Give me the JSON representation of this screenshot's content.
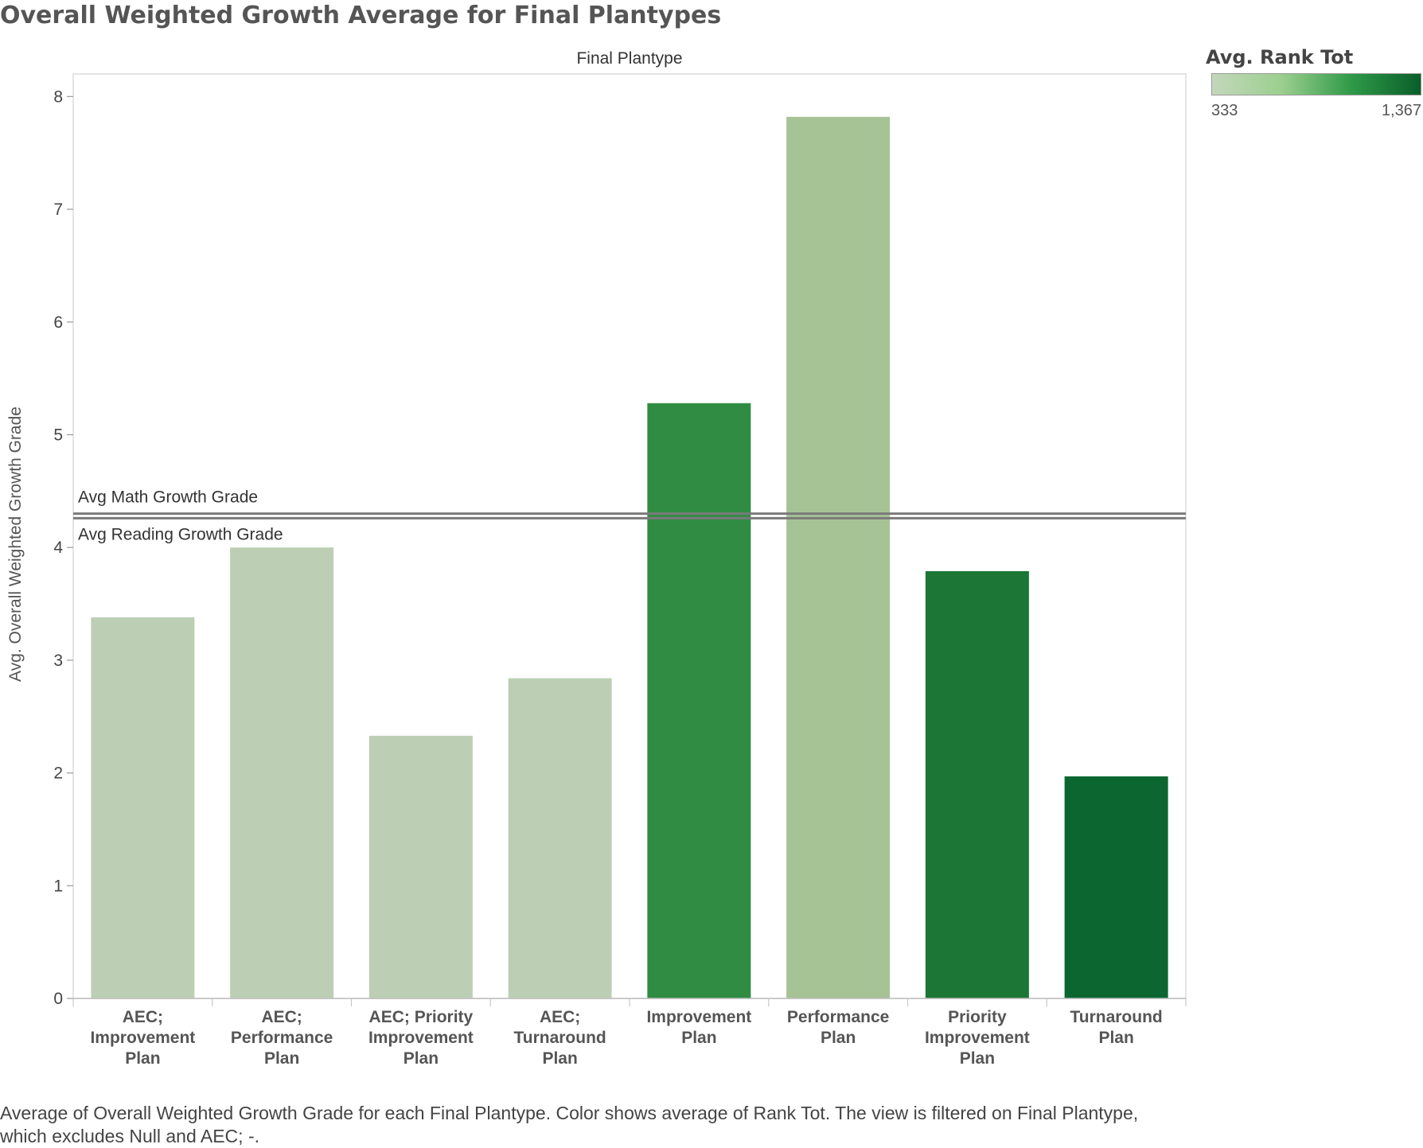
{
  "title": "Overall Weighted Growth Average for Final Plantypes",
  "legend": {
    "title": "Avg. Rank Tot",
    "min_label": "333",
    "max_label": "1,367",
    "min_value": 333,
    "max_value": 1367,
    "colors": [
      "#c3d7bc",
      "#9ccf8f",
      "#2f9a48",
      "#0a5e2a"
    ]
  },
  "caption": "Average of Overall Weighted Growth Grade for each Final Plantype.  Color shows average of Rank Tot. The view is filtered on Final Plantype, which excludes Null and AEC; -.",
  "chart_data": {
    "type": "bar",
    "column_header": "Final Plantype",
    "ylabel": "Avg. Overall Weighted Growth Grade",
    "ylim": [
      0,
      8.2
    ],
    "yticks": [
      "0",
      "1",
      "2",
      "3",
      "4",
      "5",
      "6",
      "7",
      "8"
    ],
    "categories": [
      [
        "AEC;",
        "Improvement",
        "Plan"
      ],
      [
        "AEC;",
        "Performance",
        "Plan"
      ],
      [
        "AEC; Priority",
        "Improvement",
        "Plan"
      ],
      [
        "AEC;",
        "Turnaround",
        "Plan"
      ],
      [
        "Improvement",
        "Plan"
      ],
      [
        "Performance",
        "Plan"
      ],
      [
        "Priority",
        "Improvement",
        "Plan"
      ],
      [
        "Turnaround",
        "Plan"
      ]
    ],
    "values": [
      3.38,
      4.0,
      2.33,
      2.84,
      5.28,
      7.82,
      3.79,
      1.97
    ],
    "colors": [
      "#bccfb4",
      "#bccfb4",
      "#bccfb4",
      "#bccfb4",
      "#2f8c42",
      "#a6c396",
      "#1c7636",
      "#0b6630"
    ],
    "reference_lines": [
      {
        "label": "Avg Math Growth Grade",
        "value": 4.3
      },
      {
        "label": "Avg Reading Growth Grade",
        "value": 4.26
      }
    ]
  }
}
